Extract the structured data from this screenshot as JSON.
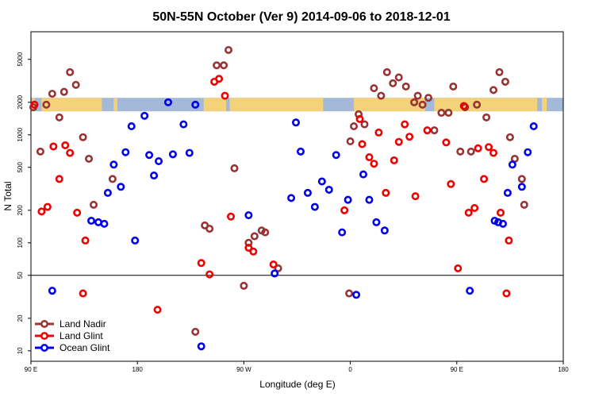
{
  "chart_data": {
    "type": "scatter",
    "title": "50N-55N October (Ver 9)   2014-09-06 to 2018-12-01",
    "xlabel": "Longitude (deg E)",
    "ylabel": "N Total",
    "x_scale": "longitude",
    "x_ticks": [
      {
        "value": 90,
        "label": "90 E"
      },
      {
        "value": 180,
        "label": "180"
      },
      {
        "value": 270,
        "label": "90 W"
      },
      {
        "value": 360,
        "label": "0"
      },
      {
        "value": 450,
        "label": "90 E"
      },
      {
        "value": 540,
        "label": "180"
      }
    ],
    "xlim": [
      90,
      540
    ],
    "y_scale": "log",
    "ylim": [
      8,
      9000
    ],
    "y_ticks": [
      10,
      20,
      50,
      100,
      200,
      500,
      1000,
      2000,
      5000
    ],
    "reference_line_y": 50,
    "land_mask_band": {
      "y_range": [
        1650,
        2200
      ],
      "ocean_color": "#a4b8d8",
      "land_color": "#f4d27a",
      "land_segments": [
        [
          91,
          93
        ],
        [
          99,
          150
        ],
        [
          160,
          163
        ],
        [
          236,
          255
        ],
        [
          258,
          337
        ],
        [
          363,
          423
        ],
        [
          431,
          518
        ],
        [
          522,
          526
        ]
      ]
    },
    "legend_position": "bottom-left",
    "series": [
      {
        "name": "Land Nadir",
        "color": "#993333",
        "points": [
          [
            92,
            1800
          ],
          [
            98,
            700
          ],
          [
            103,
            1900
          ],
          [
            108,
            2400
          ],
          [
            114,
            1450
          ],
          [
            118,
            2500
          ],
          [
            123,
            3800
          ],
          [
            128,
            2900
          ],
          [
            134,
            950
          ],
          [
            139,
            600
          ],
          [
            143,
            225
          ],
          [
            159,
            390
          ],
          [
            229,
            15
          ],
          [
            237,
            145
          ],
          [
            241,
            135
          ],
          [
            247,
            4400
          ],
          [
            253,
            4400
          ],
          [
            257,
            6100
          ],
          [
            262,
            490
          ],
          [
            270,
            40
          ],
          [
            274,
            100
          ],
          [
            279,
            115
          ],
          [
            285,
            130
          ],
          [
            288,
            125
          ],
          [
            299,
            58
          ],
          [
            359,
            34
          ],
          [
            360,
            870
          ],
          [
            363,
            1200
          ],
          [
            367,
            1550
          ],
          [
            372,
            1250
          ],
          [
            380,
            2700
          ],
          [
            386,
            2300
          ],
          [
            391,
            3800
          ],
          [
            396,
            3000
          ],
          [
            401,
            3400
          ],
          [
            407,
            2800
          ],
          [
            414,
            2000
          ],
          [
            417,
            2300
          ],
          [
            421,
            1900
          ],
          [
            426,
            2200
          ],
          [
            431,
            1100
          ],
          [
            437,
            1600
          ],
          [
            443,
            1600
          ],
          [
            447,
            2800
          ],
          [
            453,
            700
          ],
          [
            457,
            1800
          ],
          [
            462,
            700
          ],
          [
            467,
            1900
          ],
          [
            475,
            1450
          ],
          [
            481,
            2600
          ],
          [
            486,
            3800
          ],
          [
            491,
            3100
          ],
          [
            495,
            950
          ],
          [
            499,
            600
          ],
          [
            505,
            390
          ],
          [
            507,
            225
          ]
        ]
      },
      {
        "name": "Land Glint",
        "color": "#ee0000",
        "points": [
          [
            93,
            1900
          ],
          [
            99,
            195
          ],
          [
            104,
            215
          ],
          [
            109,
            780
          ],
          [
            114,
            390
          ],
          [
            119,
            800
          ],
          [
            123,
            680
          ],
          [
            129,
            190
          ],
          [
            134,
            34
          ],
          [
            136,
            105
          ],
          [
            197,
            24
          ],
          [
            234,
            65
          ],
          [
            241,
            51
          ],
          [
            245,
            3100
          ],
          [
            249,
            3300
          ],
          [
            254,
            2300
          ],
          [
            259,
            175
          ],
          [
            274,
            90
          ],
          [
            278,
            83
          ],
          [
            295,
            63
          ],
          [
            355,
            200
          ],
          [
            368,
            1400
          ],
          [
            370,
            820
          ],
          [
            376,
            620
          ],
          [
            380,
            540
          ],
          [
            384,
            1050
          ],
          [
            390,
            290
          ],
          [
            397,
            580
          ],
          [
            401,
            860
          ],
          [
            406,
            1250
          ],
          [
            410,
            960
          ],
          [
            415,
            270
          ],
          [
            425,
            1100
          ],
          [
            441,
            850
          ],
          [
            445,
            350
          ],
          [
            451,
            58
          ],
          [
            456,
            1850
          ],
          [
            460,
            190
          ],
          [
            465,
            210
          ],
          [
            468,
            750
          ],
          [
            473,
            390
          ],
          [
            477,
            770
          ],
          [
            481,
            680
          ],
          [
            487,
            190
          ],
          [
            492,
            34
          ],
          [
            494,
            105
          ]
        ]
      },
      {
        "name": "Ocean Glint",
        "color": "#0000ee",
        "points": [
          [
            108,
            36
          ],
          [
            141,
            160
          ],
          [
            147,
            155
          ],
          [
            152,
            150
          ],
          [
            155,
            290
          ],
          [
            160,
            530
          ],
          [
            166,
            330
          ],
          [
            170,
            690
          ],
          [
            175,
            1200
          ],
          [
            178,
            105
          ],
          [
            186,
            1500
          ],
          [
            190,
            650
          ],
          [
            194,
            420
          ],
          [
            198,
            570
          ],
          [
            206,
            2000
          ],
          [
            210,
            660
          ],
          [
            219,
            1250
          ],
          [
            224,
            680
          ],
          [
            229,
            1900
          ],
          [
            234,
            11
          ],
          [
            274,
            180
          ],
          [
            296,
            52
          ],
          [
            310,
            260
          ],
          [
            314,
            1300
          ],
          [
            318,
            700
          ],
          [
            324,
            290
          ],
          [
            330,
            215
          ],
          [
            336,
            370
          ],
          [
            342,
            310
          ],
          [
            348,
            650
          ],
          [
            353,
            125
          ],
          [
            358,
            250
          ],
          [
            365,
            33
          ],
          [
            371,
            430
          ],
          [
            376,
            250
          ],
          [
            382,
            155
          ],
          [
            389,
            130
          ],
          [
            461,
            36
          ],
          [
            482,
            160
          ],
          [
            485,
            155
          ],
          [
            489,
            150
          ],
          [
            493,
            290
          ],
          [
            497,
            530
          ],
          [
            505,
            330
          ],
          [
            510,
            690
          ],
          [
            515,
            1200
          ]
        ]
      }
    ]
  }
}
